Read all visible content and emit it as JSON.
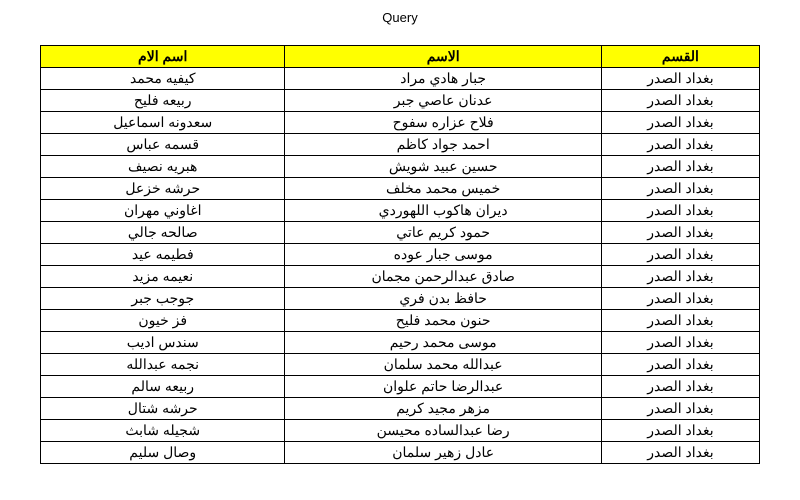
{
  "title": "Query",
  "table": {
    "columns": [
      {
        "key": "section",
        "label": "القسم"
      },
      {
        "key": "name",
        "label": "الاسم"
      },
      {
        "key": "mother",
        "label": "اسم الام"
      }
    ],
    "rows": [
      {
        "section": "بغداد الصدر",
        "name": "جبار هادي مراد",
        "mother": "كيفيه محمد"
      },
      {
        "section": "بغداد الصدر",
        "name": "عدنان عاصي جبر",
        "mother": "ربيعه فليح"
      },
      {
        "section": "بغداد الصدر",
        "name": "فلاح عزاره سفوح",
        "mother": "سعدونه اسماعيل"
      },
      {
        "section": "بغداد الصدر",
        "name": "احمد جواد كاظم",
        "mother": "قسمه عباس"
      },
      {
        "section": "بغداد الصدر",
        "name": "حسين عبيد شويش",
        "mother": "هبريه نصيف"
      },
      {
        "section": "بغداد الصدر",
        "name": "خميس محمد مخلف",
        "mother": "حرشه خزعل"
      },
      {
        "section": "بغداد الصدر",
        "name": "ديران هاكوب اللهوردي",
        "mother": "اغاوني مهران"
      },
      {
        "section": "بغداد الصدر",
        "name": "حمود كريم عاتي",
        "mother": "صالحه جالي"
      },
      {
        "section": "بغداد الصدر",
        "name": "موسى جبار عوده",
        "mother": "فطيمه عيد"
      },
      {
        "section": "بغداد الصدر",
        "name": "صادق عبدالرحمن مجمان",
        "mother": "نعيمه مزيد"
      },
      {
        "section": "بغداد الصدر",
        "name": "حافظ بدن فري",
        "mother": "جوجب جبر"
      },
      {
        "section": "بغداد الصدر",
        "name": "حنون محمد فليح",
        "mother": "فز خيون"
      },
      {
        "section": "بغداد الصدر",
        "name": "موسى محمد رحيم",
        "mother": "سندس اديب"
      },
      {
        "section": "بغداد الصدر",
        "name": "عبدالله محمد سلمان",
        "mother": "نجمه عبدالله"
      },
      {
        "section": "بغداد الصدر",
        "name": "عبدالرضا حاتم علوان",
        "mother": "ربيعه سالم"
      },
      {
        "section": "بغداد الصدر",
        "name": "مزهر مجيد كريم",
        "mother": "حرشه شتال"
      },
      {
        "section": "بغداد الصدر",
        "name": "رضا عبدالساده محيسن",
        "mother": "شجيله شابث"
      },
      {
        "section": "بغداد الصدر",
        "name": "عادل زهير سلمان",
        "mother": "وصال سليم"
      }
    ],
    "header_bg": "#ffff00",
    "border_color": "#000000",
    "background_color": "#ffffff"
  }
}
